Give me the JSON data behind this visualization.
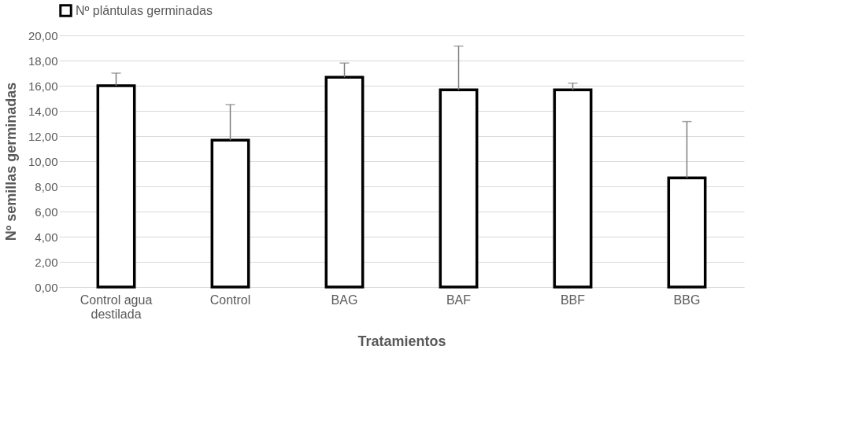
{
  "chart_data": {
    "type": "bar",
    "xlabel": "Tratamientos",
    "ylabel": "Nº semillas germinadas",
    "categories": [
      "Control agua destilada",
      "Control",
      "BAG",
      "BAF",
      "BBF",
      "BBG"
    ],
    "series": [
      {
        "name": "Nº plántulas germinadas",
        "color": "#000000",
        "values": [
          16.0,
          11.67,
          16.67,
          15.67,
          15.67,
          8.67
        ],
        "errors": [
          [
            16.0,
            17.0
          ],
          [
            11.67,
            14.5
          ],
          [
            16.67,
            17.8
          ],
          [
            15.67,
            19.15
          ],
          [
            15.67,
            16.2
          ],
          [
            8.67,
            13.15
          ]
        ]
      }
    ],
    "ylim": [
      0,
      20
    ],
    "yticks": [
      {
        "value": 0,
        "label": "0,00"
      },
      {
        "value": 2,
        "label": "2,00"
      },
      {
        "value": 4,
        "label": "4,00"
      },
      {
        "value": 6,
        "label": "6,00"
      },
      {
        "value": 8,
        "label": "8,00"
      },
      {
        "value": 10,
        "label": "10,00"
      },
      {
        "value": 12,
        "label": "12,00"
      },
      {
        "value": 14,
        "label": "14,00"
      },
      {
        "value": 16,
        "label": "16,00"
      },
      {
        "value": 18,
        "label": "18,00"
      },
      {
        "value": 20,
        "label": "20,00"
      }
    ],
    "grid": "y",
    "legend": "top"
  }
}
